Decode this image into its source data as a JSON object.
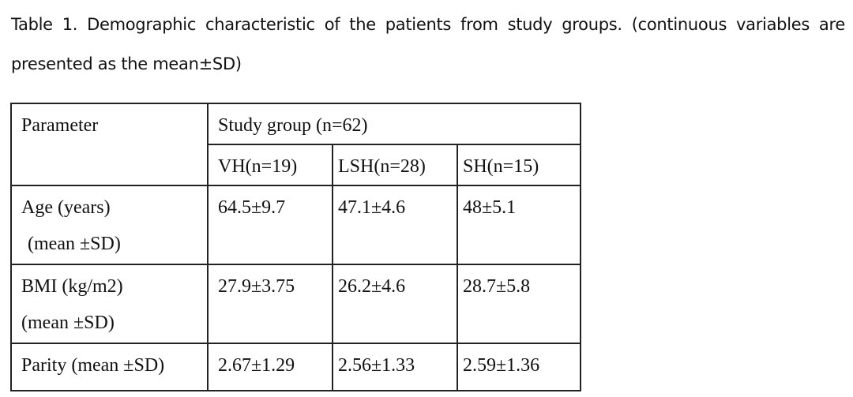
{
  "caption": "Table 1. Demographic characteristic of the patients from study groups. (continuous variables are presented as the mean±SD)",
  "table": {
    "parameter_header": "Parameter",
    "group_header": "Study group (n=62)",
    "groups": [
      "VH(n=19)",
      "LSH(n=28)",
      "SH(n=15)"
    ],
    "rows": [
      {
        "label": [
          "Age (years)",
          "(mean ±SD)"
        ],
        "cells": [
          "64.5±9.7",
          "47.1±4.6",
          "48±5.1"
        ]
      },
      {
        "label": [
          "BMI (kg/m2)",
          "(mean ±SD)"
        ],
        "cells": [
          "27.9±3.75",
          "26.2±4.6",
          "28.7±5.8"
        ]
      },
      {
        "label": [
          "Parity (mean ±SD)"
        ],
        "cells": [
          "2.67±1.29",
          "2.56±1.33",
          "2.59±1.36"
        ]
      }
    ]
  }
}
